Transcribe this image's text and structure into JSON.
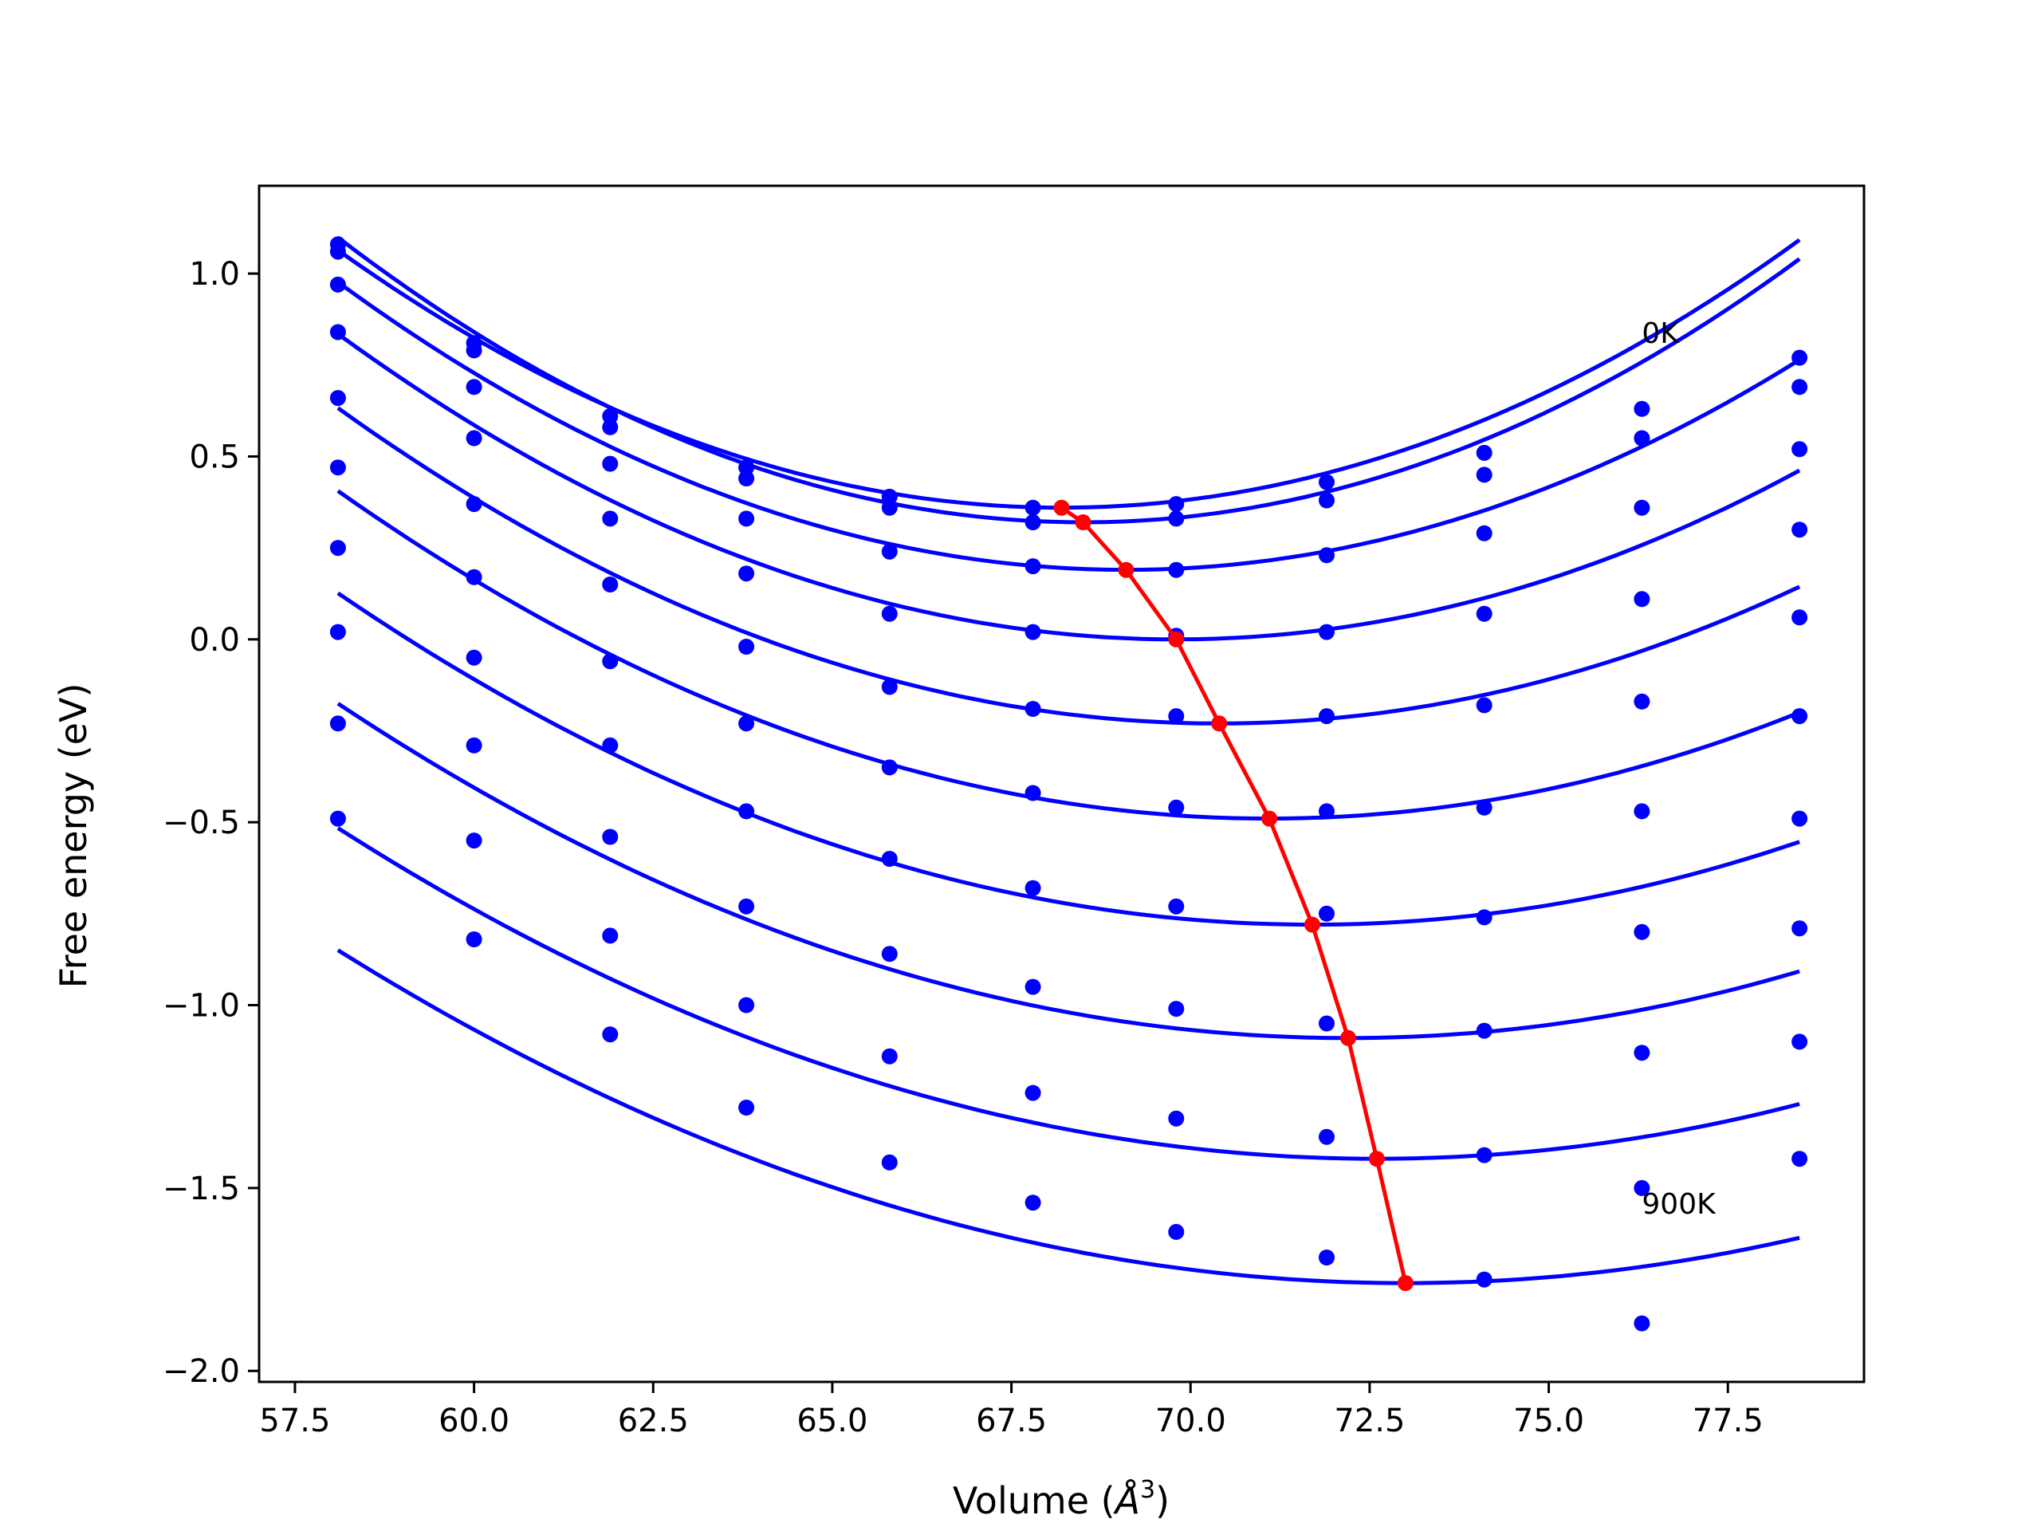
{
  "chart_data": {
    "type": "scatter",
    "title": "",
    "xlabel": "Volume (",
    "xlabel_symbol": "Å",
    "xlabel_exponent": "3",
    "xlabel_close": ")",
    "ylabel": "Free energy (eV)",
    "xlim": [
      57.0,
      79.4
    ],
    "ylim": [
      -2.03,
      1.24
    ],
    "x_ticks": [
      57.5,
      60.0,
      62.5,
      65.0,
      67.5,
      70.0,
      72.5,
      75.0,
      77.5
    ],
    "x_tick_labels": [
      "57.5",
      "60.0",
      "62.5",
      "65.0",
      "67.5",
      "70.0",
      "72.5",
      "75.0",
      "77.5"
    ],
    "y_ticks": [
      1.0,
      0.5,
      0.0,
      -0.5,
      -1.0,
      -1.5,
      -2.0
    ],
    "y_tick_labels": [
      "1.0",
      "0.5",
      "0.0",
      "−0.5",
      "−1.0",
      "−1.5",
      "−2.0"
    ],
    "grid": false,
    "annotations": [
      {
        "text": "0K",
        "x": 76.3,
        "y": 0.81
      },
      {
        "text": "900K",
        "x": 76.3,
        "y": -1.57
      }
    ],
    "volumes": [
      58.1,
      60.0,
      61.9,
      63.8,
      65.8,
      67.8,
      69.8,
      71.9,
      74.1,
      76.3,
      78.5
    ],
    "series": [
      {
        "fit": {
          "vmin": 58.1,
          "vmax": 78.5,
          "v0": 68.2,
          "e0": 0.36,
          "b": 0.0069
        },
        "points": [
          1.08,
          0.81,
          0.61,
          0.47,
          0.39,
          0.36,
          0.37,
          0.43,
          0.51,
          0.63,
          0.77
        ]
      },
      {
        "fit": {
          "vmin": 58.1,
          "vmax": 78.5,
          "v0": 68.5,
          "e0": 0.32,
          "b": 0.0072
        },
        "points": [
          1.06,
          0.79,
          0.58,
          0.44,
          0.36,
          0.32,
          0.33,
          0.38,
          0.45,
          0.55,
          0.69
        ]
      },
      {
        "fit": {
          "vmin": 58.1,
          "vmax": 78.5,
          "v0": 69.1,
          "e0": 0.19,
          "b": 0.0065
        },
        "points": [
          0.97,
          0.69,
          0.48,
          0.33,
          0.24,
          0.2,
          0.19,
          0.23,
          0.29,
          0.36,
          0.52
        ]
      },
      {
        "fit": {
          "vmin": 58.1,
          "vmax": 78.5,
          "v0": 69.8,
          "e0": 0.0,
          "b": 0.0061
        },
        "points": [
          0.84,
          0.55,
          0.33,
          0.18,
          0.07,
          0.02,
          0.01,
          0.02,
          0.07,
          0.11,
          0.3
        ]
      },
      {
        "fit": {
          "vmin": 58.1,
          "vmax": 78.5,
          "v0": 70.4,
          "e0": -0.23,
          "b": 0.0057
        },
        "points": [
          0.66,
          0.37,
          0.15,
          -0.02,
          -0.13,
          -0.19,
          -0.21,
          -0.21,
          -0.18,
          -0.17,
          0.06
        ]
      },
      {
        "fit": {
          "vmin": 58.1,
          "vmax": 78.5,
          "v0": 71.1,
          "e0": -0.49,
          "b": 0.0053
        },
        "points": [
          0.47,
          0.17,
          -0.06,
          -0.23,
          -0.35,
          -0.42,
          -0.46,
          -0.47,
          -0.46,
          -0.47,
          -0.21
        ]
      },
      {
        "fit": {
          "vmin": 58.1,
          "vmax": 78.5,
          "v0": 71.7,
          "e0": -0.78,
          "b": 0.0049
        },
        "points": [
          0.25,
          -0.05,
          -0.29,
          -0.47,
          -0.6,
          -0.68,
          -0.73,
          -0.75,
          -0.76,
          -0.8,
          -0.49
        ]
      },
      {
        "fit": {
          "vmin": 58.1,
          "vmax": 78.5,
          "v0": 72.2,
          "e0": -1.09,
          "b": 0.0046
        },
        "points": [
          0.02,
          -0.29,
          -0.54,
          -0.73,
          -0.86,
          -0.95,
          -1.01,
          -1.05,
          -1.07,
          -1.13,
          -0.79
        ]
      },
      {
        "fit": {
          "vmin": 58.1,
          "vmax": 78.5,
          "v0": 72.6,
          "e0": -1.42,
          "b": 0.0043
        },
        "points": [
          -0.23,
          -0.55,
          -0.81,
          -1.0,
          -1.14,
          -1.24,
          -1.31,
          -1.36,
          -1.41,
          -1.5,
          -1.1
        ]
      },
      {
        "fit": {
          "vmin": 58.1,
          "vmax": 78.5,
          "v0": 73.0,
          "e0": -1.76,
          "b": 0.0041
        },
        "points": [
          -0.49,
          -0.82,
          -1.08,
          -1.28,
          -1.43,
          -1.54,
          -1.62,
          -1.69,
          -1.75,
          -1.87,
          -1.42
        ]
      }
    ],
    "minima_line": {
      "x": [
        68.2,
        68.5,
        69.1,
        69.8,
        70.4,
        71.1,
        71.7,
        72.2,
        72.6,
        73.0
      ],
      "y": [
        0.36,
        0.32,
        0.19,
        0.0,
        -0.23,
        -0.49,
        -0.78,
        -1.09,
        -1.42,
        -1.76
      ]
    },
    "colors": {
      "points": "#0000ff",
      "fits": "#0000ff",
      "minima": "#ff0000",
      "axes": "#000000"
    }
  }
}
